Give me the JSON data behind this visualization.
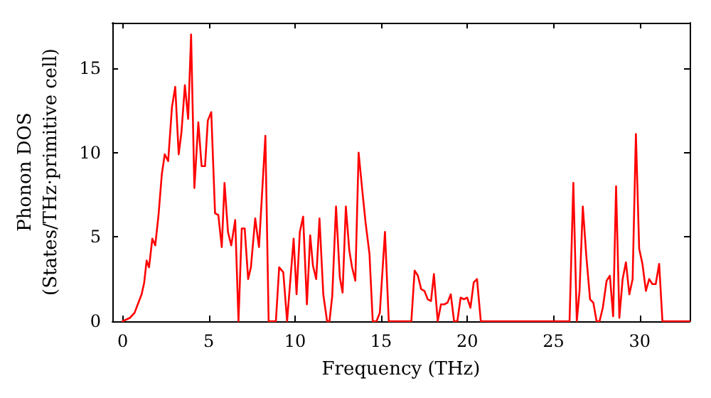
{
  "chart_data": {
    "type": "line",
    "xlabel": "Frequency (THz)",
    "ylabel": "Phonon DOS\n(States/THz·primitive cell)",
    "xlim": [
      -0.6,
      32.9
    ],
    "ylim": [
      0,
      17.7
    ],
    "xticks": [
      0,
      5,
      10,
      15,
      20,
      25,
      30
    ],
    "yticks": [
      0,
      5,
      10,
      15
    ],
    "grid": false,
    "marker": "none",
    "line_style": "solid",
    "series": [
      {
        "color": "#ff0000",
        "x": [
          0,
          0.42,
          0.69,
          1.1,
          1.25,
          1.39,
          1.53,
          1.72,
          1.89,
          2.08,
          2.27,
          2.44,
          2.64,
          2.86,
          3.05,
          3.25,
          3.41,
          3.61,
          3.8,
          3.97,
          4.16,
          4.39,
          4.58,
          4.78,
          4.94,
          5.14,
          5.36,
          5.55,
          5.75,
          5.91,
          6.11,
          6.3,
          6.53,
          6.72,
          6.91,
          7.08,
          7.28,
          7.44,
          7.69,
          7.91,
          8.28,
          8.47,
          8.89,
          9.08,
          9.32,
          9.54,
          9.92,
          10.09,
          10.28,
          10.47,
          10.69,
          10.88,
          11.04,
          11.23,
          11.42,
          11.64,
          11.86,
          12.0,
          12.16,
          12.38,
          12.6,
          12.76,
          12.95,
          13.15,
          13.31,
          13.5,
          13.69,
          13.91,
          14.1,
          14.32,
          14.51,
          14.73,
          14.92,
          15.22,
          15.44,
          16.75,
          16.94,
          17.13,
          17.32,
          17.51,
          17.7,
          17.89,
          18.06,
          18.28,
          18.47,
          18.66,
          18.85,
          19.04,
          19.23,
          19.42,
          19.61,
          19.8,
          19.99,
          20.18,
          20.37,
          20.56,
          20.78,
          25.93,
          26.15,
          26.35,
          26.51,
          26.7,
          26.9,
          27.12,
          27.31,
          27.5,
          27.67,
          27.86,
          28.08,
          28.27,
          28.46,
          28.63,
          28.82,
          29.01,
          29.2,
          29.4,
          29.59,
          29.78,
          29.97,
          30.16,
          30.36,
          30.55,
          30.74,
          30.93,
          31.13,
          31.32,
          32.9
        ],
        "values": [
          0,
          0.2,
          0.5,
          1.6,
          2.3,
          3.6,
          3.2,
          4.9,
          4.5,
          6.3,
          8.7,
          9.9,
          9.5,
          12.7,
          13.9,
          9.9,
          11.2,
          14.0,
          12.0,
          17.0,
          7.9,
          11.8,
          9.2,
          9.2,
          11.9,
          12.4,
          6.4,
          6.3,
          4.4,
          8.2,
          5.3,
          4.5,
          6.0,
          0,
          5.5,
          5.5,
          2.5,
          3.2,
          6.1,
          4.4,
          11.0,
          0,
          0,
          3.2,
          2.9,
          0,
          4.9,
          1.6,
          5.3,
          6.2,
          1.0,
          5.1,
          3.3,
          2.5,
          6.1,
          1.6,
          0,
          0,
          1.5,
          6.8,
          2.6,
          1.7,
          6.8,
          4.2,
          3.2,
          2.4,
          10.0,
          7.7,
          5.8,
          4.0,
          0,
          0,
          0.5,
          5.3,
          0,
          0,
          3.0,
          2.7,
          1.9,
          1.8,
          1.3,
          1.2,
          2.8,
          0,
          1.0,
          1.0,
          1.1,
          1.6,
          0,
          0,
          1.4,
          1.3,
          1.4,
          0.8,
          2.3,
          2.5,
          0,
          0,
          8.2,
          0,
          1.8,
          6.8,
          3.9,
          1.3,
          1.1,
          0,
          0,
          0.8,
          2.4,
          2.7,
          0.3,
          8.0,
          0.2,
          2.5,
          3.5,
          1.6,
          2.5,
          11.1,
          4.3,
          3.4,
          1.8,
          2.5,
          2.2,
          2.2,
          3.4,
          0,
          0
        ]
      }
    ]
  }
}
